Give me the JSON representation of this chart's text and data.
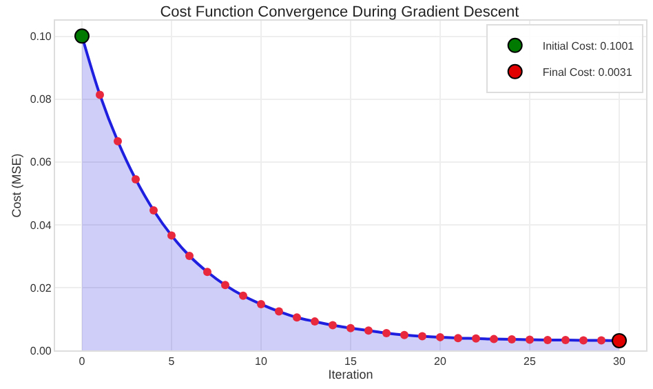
{
  "chart_data": {
    "type": "area",
    "title": "Cost Function Convergence During Gradient Descent",
    "xlabel": "Iteration",
    "ylabel": "Cost (MSE)",
    "x": [
      0,
      1,
      2,
      3,
      4,
      5,
      6,
      7,
      8,
      9,
      10,
      11,
      12,
      13,
      14,
      15,
      16,
      17,
      18,
      19,
      20,
      21,
      22,
      23,
      24,
      25,
      26,
      27,
      28,
      29,
      30
    ],
    "series": [
      {
        "color": "#1f1fe0",
        "marker": "none",
        "values": [
          0.1001,
          0.0814,
          0.0666,
          0.0545,
          0.0446,
          0.0366,
          0.0301,
          0.025,
          0.0208,
          0.0174,
          0.0147,
          0.0124,
          0.0105,
          0.0092,
          0.008,
          0.0071,
          0.0063,
          0.0055,
          0.0049,
          0.0045,
          0.0042,
          0.0039,
          0.0038,
          0.0036,
          0.0035,
          0.0034,
          0.0033,
          0.0033,
          0.0032,
          0.0032,
          0.0031
        ]
      },
      {
        "type": "scatter",
        "color": "#e8283c",
        "marker": "circle",
        "values": [
          null,
          0.0814,
          0.0666,
          0.0545,
          0.0446,
          0.0366,
          0.0301,
          0.025,
          0.0208,
          0.0174,
          0.0147,
          0.0124,
          0.0105,
          0.0092,
          0.008,
          0.0071,
          0.0063,
          0.0055,
          0.0049,
          0.0045,
          0.0042,
          0.0039,
          0.0038,
          0.0036,
          0.0035,
          0.0034,
          0.0033,
          0.0033,
          0.0032,
          0.0032,
          null
        ]
      },
      {
        "type": "scatter",
        "name": "Initial Cost: 0.1001",
        "color": "#007a00",
        "marker": "circle",
        "x": [
          0
        ],
        "values": [
          0.1001
        ]
      },
      {
        "type": "scatter",
        "name": "Final Cost: 0.0031",
        "color": "#e00000",
        "marker": "circle",
        "x": [
          30
        ],
        "values": [
          0.0031
        ]
      }
    ],
    "xlim": [
      -1.5,
      31.5
    ],
    "xticks": [
      0,
      5,
      10,
      15,
      20,
      25,
      30
    ],
    "ylim": [
      0,
      0.105
    ],
    "yticks": [
      {
        "value": 0,
        "label": "0.00"
      },
      {
        "value": 0.02,
        "label": "0.02"
      },
      {
        "value": 0.04,
        "label": "0.04"
      },
      {
        "value": 0.06,
        "label": "0.06"
      },
      {
        "value": 0.08,
        "label": "0.08"
      },
      {
        "value": 0.1,
        "label": "0.10"
      }
    ],
    "grid": true,
    "legend": "top right"
  }
}
